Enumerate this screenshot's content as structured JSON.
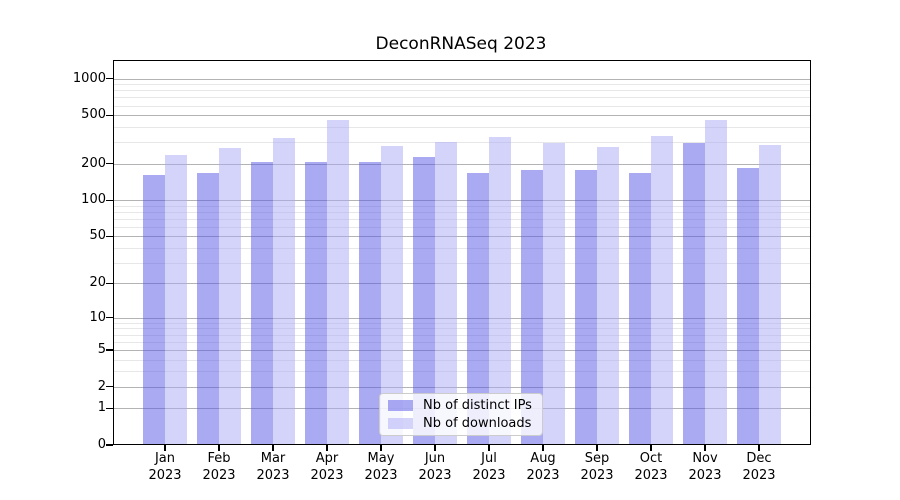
{
  "chart_data": {
    "type": "bar",
    "title": "DeconRNASeq 2023",
    "scale": "log-like (log10 of 1+x)",
    "grid": true,
    "legend_position": "lower center",
    "categories": [
      "Jan",
      "Feb",
      "Mar",
      "Apr",
      "May",
      "Jun",
      "Jul",
      "Aug",
      "Sep",
      "Oct",
      "Nov",
      "Dec"
    ],
    "year": "2023",
    "series": [
      {
        "name": "Nb of distinct IPs",
        "color": "#a8a8f2",
        "fill": "rgba(85,85,230,0.5)",
        "values": [
          161,
          167,
          207,
          207,
          206,
          225,
          168,
          179,
          177,
          168,
          297,
          183
        ]
      },
      {
        "name": "Nb of downloads",
        "color": "#d8d8f8",
        "fill": "rgba(170,170,245,0.5)",
        "values": [
          235,
          269,
          326,
          459,
          277,
          303,
          333,
          297,
          272,
          337,
          454,
          284
        ]
      }
    ],
    "yticks": [
      0,
      1,
      2,
      5,
      10,
      20,
      50,
      100,
      200,
      500,
      1000
    ],
    "minor_gridlines": [
      3,
      4,
      6,
      7,
      8,
      9,
      30,
      40,
      60,
      70,
      80,
      90,
      300,
      400,
      600,
      700,
      800,
      900
    ],
    "ylim": [
      0,
      1417
    ]
  },
  "colors": {
    "major_grid": "#b3b3b3",
    "minor_grid": "#e7e7e7",
    "axis": "#000000",
    "legend_border": "#cccccc"
  }
}
